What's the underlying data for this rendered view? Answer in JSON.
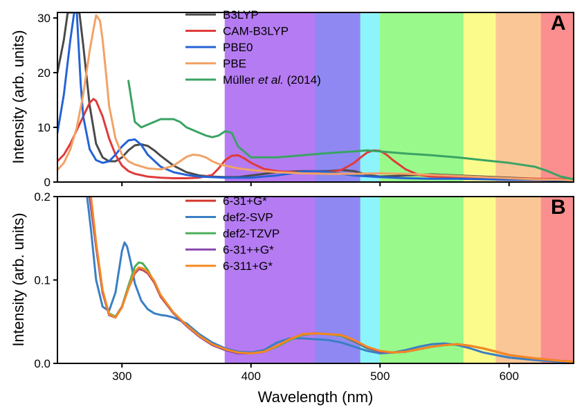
{
  "chart_data": [
    {
      "type": "line",
      "panel_label": "A",
      "ylabel": "Intensity (arb. units)",
      "xlabel": "",
      "xlim": [
        250,
        650
      ],
      "ylim": [
        0,
        31
      ],
      "x_ticks": [
        "300",
        "400",
        "500",
        "600"
      ],
      "x_ticks_numeric": [
        300,
        400,
        500,
        600
      ],
      "y_ticks": [
        "0",
        "10",
        "20",
        "30"
      ],
      "y_ticks_numeric": [
        0,
        10,
        20,
        30
      ],
      "legend_position": "top-center",
      "spectral_bands": [
        {
          "from": 380,
          "to": 450,
          "color": "#b57bf2"
        },
        {
          "from": 450,
          "to": 485,
          "color": "#8f88f3"
        },
        {
          "from": 485,
          "to": 500,
          "color": "#8ef4fb"
        },
        {
          "from": 500,
          "to": 565,
          "color": "#99f98b"
        },
        {
          "from": 565,
          "to": 590,
          "color": "#fbfb8c"
        },
        {
          "from": 590,
          "to": 625,
          "color": "#fbc695"
        },
        {
          "from": 625,
          "to": 650,
          "color": "#fb8e8e"
        }
      ],
      "series": [
        {
          "name": "B3LYP",
          "color": "#4a4a4a",
          "x": [
            250,
            255,
            258,
            261,
            264,
            267,
            270,
            275,
            280,
            285,
            290,
            295,
            300,
            305,
            310,
            315,
            320,
            325,
            330,
            340,
            350,
            360,
            370,
            380,
            390,
            400,
            420,
            440,
            460,
            470,
            480,
            490,
            500,
            520,
            540,
            560,
            580,
            600,
            620,
            640,
            650
          ],
          "y": [
            20,
            26,
            31,
            31,
            31,
            31,
            25,
            14,
            7,
            4.5,
            3.8,
            3.8,
            4.5,
            5.8,
            6.7,
            6.9,
            6.6,
            5.8,
            4.8,
            3,
            1.8,
            1.2,
            1,
            0.9,
            0.9,
            1.2,
            1.8,
            2,
            2,
            2.2,
            2,
            1.3,
            1,
            1.2,
            1.4,
            1.2,
            1,
            0.8,
            0.6,
            0.5,
            0.4
          ]
        },
        {
          "name": "CAM-B3LYP",
          "color": "#e03a3a",
          "x": [
            250,
            255,
            260,
            265,
            270,
            275,
            278,
            280,
            285,
            290,
            295,
            300,
            305,
            310,
            320,
            330,
            340,
            350,
            360,
            370,
            375,
            380,
            385,
            390,
            395,
            400,
            410,
            420,
            440,
            460,
            470,
            480,
            485,
            490,
            495,
            500,
            505,
            510,
            520,
            530,
            540,
            560,
            580,
            600,
            620,
            640,
            650
          ],
          "y": [
            3.8,
            5,
            7,
            9.5,
            12,
            14.5,
            15.2,
            14.8,
            12,
            8,
            5,
            3,
            2,
            1.5,
            1,
            0.8,
            0.7,
            0.7,
            0.8,
            1.3,
            2.5,
            4,
            4.8,
            4.9,
            4.3,
            3.5,
            2.4,
            2,
            1.7,
            1.8,
            2.2,
            3.5,
            4.5,
            5.4,
            5.8,
            5.7,
            5,
            4,
            2.3,
            1.3,
            1,
            0.9,
            0.8,
            0.7,
            0.6,
            0.5,
            0.4
          ]
        },
        {
          "name": "PBE0",
          "color": "#2563d6",
          "x": [
            250,
            255,
            260,
            263,
            265,
            268,
            270,
            275,
            280,
            285,
            290,
            295,
            300,
            305,
            310,
            315,
            320,
            330,
            340,
            350,
            360,
            380,
            400,
            420,
            440,
            450,
            460,
            480,
            500,
            520,
            540,
            560,
            580,
            600,
            620,
            640,
            650
          ],
          "y": [
            9,
            16,
            26,
            31,
            31,
            18,
            12,
            6,
            4,
            3.5,
            3.8,
            5,
            6.5,
            7.6,
            7.8,
            6.8,
            5,
            2.8,
            1.8,
            1.3,
            1,
            0.8,
            0.8,
            1.2,
            1.9,
            2,
            1.8,
            1.2,
            0.9,
            0.7,
            0.6,
            0.6,
            0.5,
            0.4,
            0.4,
            0.3,
            0.3
          ]
        },
        {
          "name": "PBE",
          "color": "#f2a266",
          "x": [
            250,
            255,
            260,
            265,
            270,
            275,
            278,
            280,
            283,
            285,
            288,
            290,
            295,
            300,
            305,
            310,
            320,
            330,
            340,
            345,
            350,
            355,
            360,
            365,
            370,
            375,
            380,
            390,
            400,
            420,
            440,
            460,
            480,
            500,
            520,
            540,
            560,
            580,
            600,
            620,
            640,
            650
          ],
          "y": [
            2.2,
            3.5,
            6,
            10,
            16,
            24,
            28,
            30.5,
            29.5,
            26,
            19,
            14,
            8,
            5,
            3.8,
            3.2,
            2.5,
            2.3,
            3,
            3.8,
            4.6,
            5,
            4.9,
            4.5,
            3.8,
            3.3,
            3,
            2.5,
            2.2,
            1.8,
            1.6,
            1.5,
            1.5,
            1.6,
            1.5,
            1.3,
            1.1,
            0.9,
            0.7,
            0.5,
            0.4,
            0.3
          ]
        },
        {
          "name": "Müller et al. (2014)",
          "name_prefix": "Müller ",
          "name_italic": "et al.",
          "name_suffix": " (2014)",
          "color": "#3aa363",
          "x": [
            305,
            308,
            310,
            315,
            320,
            325,
            330,
            335,
            340,
            345,
            350,
            355,
            360,
            365,
            370,
            375,
            380,
            385,
            390,
            400,
            420,
            440,
            460,
            480,
            490,
            500,
            520,
            540,
            560,
            580,
            600,
            620,
            630,
            640,
            650
          ],
          "y": [
            18.5,
            14,
            11,
            10,
            10.5,
            11,
            11.5,
            11.5,
            11.5,
            11,
            10,
            9.5,
            9,
            8.5,
            8.2,
            8.5,
            9.3,
            9,
            6.5,
            4.5,
            4.5,
            4.9,
            5.3,
            5.6,
            5.8,
            5.6,
            5.2,
            4.9,
            4.5,
            4,
            3.5,
            2.8,
            2,
            1,
            0.5
          ]
        }
      ]
    },
    {
      "type": "line",
      "panel_label": "B",
      "ylabel": "Intensity (arb. units)",
      "xlabel": "Wavelength (nm)",
      "xlim": [
        250,
        650
      ],
      "ylim": [
        0,
        0.2
      ],
      "x_ticks": [
        "300",
        "400",
        "500",
        "600"
      ],
      "x_ticks_numeric": [
        300,
        400,
        500,
        600
      ],
      "y_ticks": [
        "0.0",
        "0.1",
        "0.2"
      ],
      "y_ticks_numeric": [
        0,
        0.1,
        0.2
      ],
      "legend_position": "top-center",
      "spectral_bands": [
        {
          "from": 380,
          "to": 450,
          "color": "#b57bf2"
        },
        {
          "from": 450,
          "to": 485,
          "color": "#8f88f3"
        },
        {
          "from": 485,
          "to": 500,
          "color": "#8ef4fb"
        },
        {
          "from": 500,
          "to": 565,
          "color": "#99f98b"
        },
        {
          "from": 565,
          "to": 590,
          "color": "#fbfb8c"
        },
        {
          "from": 590,
          "to": 625,
          "color": "#fbc695"
        },
        {
          "from": 625,
          "to": 650,
          "color": "#fb8e8e"
        }
      ],
      "series": [
        {
          "name": "def2-SVP",
          "color": "#3a7fc4",
          "x": [
            273,
            276,
            280,
            285,
            290,
            295,
            300,
            302,
            304,
            307,
            310,
            315,
            320,
            325,
            330,
            335,
            340,
            350,
            360,
            370,
            380,
            390,
            400,
            410,
            420,
            430,
            440,
            450,
            460,
            470,
            480,
            490,
            500,
            510,
            520,
            530,
            540,
            550,
            560,
            570,
            580,
            590,
            600,
            620,
            640,
            650
          ],
          "y": [
            0.2,
            0.16,
            0.1,
            0.068,
            0.063,
            0.085,
            0.135,
            0.145,
            0.14,
            0.12,
            0.096,
            0.075,
            0.065,
            0.06,
            0.058,
            0.057,
            0.055,
            0.048,
            0.035,
            0.025,
            0.018,
            0.014,
            0.013,
            0.016,
            0.025,
            0.03,
            0.03,
            0.029,
            0.028,
            0.025,
            0.02,
            0.015,
            0.012,
            0.013,
            0.016,
            0.02,
            0.023,
            0.024,
            0.022,
            0.018,
            0.013,
            0.01,
            0.007,
            0.004,
            0.002,
            0.002
          ]
        },
        {
          "name": "def2-TZVP",
          "color": "#4cae5a",
          "x": [
            275,
            280,
            285,
            290,
            295,
            300,
            305,
            310,
            313,
            316,
            320,
            325,
            330,
            340,
            350,
            360,
            370,
            380,
            390,
            400,
            410,
            420,
            430,
            440,
            450,
            460,
            470,
            480,
            490,
            500,
            510,
            520,
            530,
            540,
            550,
            560,
            570,
            580,
            590,
            600,
            620,
            640,
            650
          ],
          "y": [
            0.2,
            0.14,
            0.085,
            0.06,
            0.056,
            0.068,
            0.093,
            0.116,
            0.121,
            0.12,
            0.112,
            0.097,
            0.08,
            0.06,
            0.045,
            0.032,
            0.022,
            0.016,
            0.012,
            0.012,
            0.014,
            0.02,
            0.028,
            0.034,
            0.036,
            0.035,
            0.033,
            0.026,
            0.018,
            0.014,
            0.013,
            0.014,
            0.017,
            0.02,
            0.022,
            0.023,
            0.021,
            0.018,
            0.014,
            0.01,
            0.006,
            0.003,
            0.002
          ]
        },
        {
          "name": "6-31+G*",
          "color": "#d6332a",
          "x": [
            275,
            280,
            285,
            290,
            295,
            300,
            305,
            310,
            313,
            316,
            320,
            325,
            330,
            340,
            350,
            360,
            370,
            380,
            390,
            400,
            410,
            420,
            430,
            440,
            450,
            460,
            470,
            480,
            490,
            500,
            510,
            520,
            530,
            540,
            550,
            560,
            570,
            580,
            590,
            600,
            620,
            640,
            650
          ],
          "y": [
            0.2,
            0.14,
            0.085,
            0.058,
            0.055,
            0.068,
            0.09,
            0.108,
            0.113,
            0.112,
            0.108,
            0.097,
            0.08,
            0.06,
            0.045,
            0.032,
            0.022,
            0.016,
            0.012,
            0.012,
            0.014,
            0.021,
            0.029,
            0.035,
            0.036,
            0.035,
            0.034,
            0.027,
            0.019,
            0.014,
            0.013,
            0.014,
            0.017,
            0.02,
            0.022,
            0.023,
            0.021,
            0.018,
            0.014,
            0.01,
            0.006,
            0.003,
            0.002
          ]
        },
        {
          "name": "6-31++G*",
          "color": "#8b4ab0",
          "x": [
            275,
            280,
            285,
            290,
            295,
            300,
            305,
            310,
            313,
            316,
            320,
            325,
            330,
            340,
            350,
            360,
            370,
            380,
            390,
            400,
            410,
            420,
            430,
            440,
            450,
            460,
            470,
            480,
            490,
            500,
            510,
            520,
            530,
            540,
            550,
            560,
            570,
            580,
            590,
            600,
            620,
            640,
            650
          ],
          "y": [
            0.2,
            0.14,
            0.085,
            0.058,
            0.055,
            0.068,
            0.09,
            0.109,
            0.114,
            0.113,
            0.109,
            0.098,
            0.081,
            0.06,
            0.045,
            0.032,
            0.022,
            0.016,
            0.012,
            0.012,
            0.014,
            0.021,
            0.029,
            0.035,
            0.036,
            0.035,
            0.034,
            0.027,
            0.019,
            0.014,
            0.013,
            0.014,
            0.017,
            0.02,
            0.022,
            0.023,
            0.021,
            0.018,
            0.014,
            0.01,
            0.006,
            0.003,
            0.002
          ]
        },
        {
          "name": "6-311+G*",
          "color": "#f5891f",
          "x": [
            276,
            280,
            285,
            290,
            295,
            300,
            305,
            310,
            313,
            316,
            320,
            325,
            330,
            340,
            350,
            360,
            370,
            380,
            390,
            400,
            410,
            420,
            430,
            440,
            450,
            460,
            470,
            480,
            490,
            500,
            510,
            520,
            530,
            540,
            550,
            560,
            570,
            580,
            590,
            600,
            620,
            640,
            650
          ],
          "y": [
            0.2,
            0.145,
            0.088,
            0.059,
            0.055,
            0.067,
            0.09,
            0.11,
            0.115,
            0.114,
            0.11,
            0.099,
            0.082,
            0.061,
            0.046,
            0.033,
            0.023,
            0.017,
            0.013,
            0.012,
            0.014,
            0.021,
            0.029,
            0.035,
            0.036,
            0.035,
            0.034,
            0.028,
            0.02,
            0.015,
            0.013,
            0.014,
            0.017,
            0.02,
            0.022,
            0.023,
            0.021,
            0.018,
            0.014,
            0.01,
            0.006,
            0.003,
            0.002
          ]
        }
      ],
      "legend_order": [
        "6-31+G*",
        "def2-SVP",
        "def2-TZVP",
        "6-31++G*",
        "6-311+G*"
      ]
    }
  ]
}
